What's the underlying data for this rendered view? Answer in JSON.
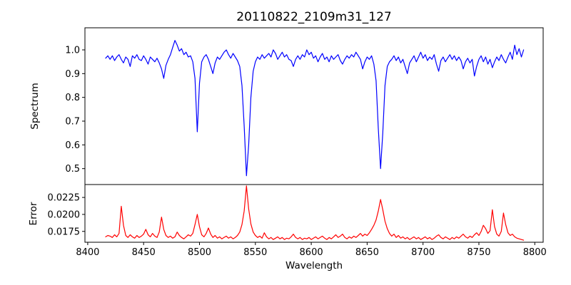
{
  "figure": {
    "title": "20110822_2109m31_127",
    "background_color": "#ffffff",
    "frame_color": "#000000"
  },
  "chart_data": [
    {
      "type": "line",
      "panel": "spectrum",
      "title": "20110822_2109m31_127",
      "xlabel": "",
      "ylabel": "Spectrum",
      "xlim": [
        8397.5,
        8807.5
      ],
      "ylim": [
        0.433,
        1.093
      ],
      "yticks": [
        1.0,
        0.9,
        0.8,
        0.7,
        0.6,
        0.5
      ],
      "ytick_labels": [
        "1.0",
        "0.9",
        "0.8",
        "0.7",
        "0.6",
        "0.5"
      ],
      "grid": false,
      "legend": "none",
      "annotations": "absorption lines (Ca II triplet) near 8498, 8542, 8662; deepest minima ~0.65, ~0.47, ~0.50",
      "series": [
        {
          "name": "spectrum",
          "color": "#0000ff",
          "x_start": 8416,
          "x_step": 2,
          "y": [
            0.965,
            0.975,
            0.96,
            0.975,
            0.955,
            0.97,
            0.98,
            0.96,
            0.945,
            0.97,
            0.96,
            0.93,
            0.975,
            0.965,
            0.98,
            0.96,
            0.955,
            0.975,
            0.96,
            0.94,
            0.97,
            0.96,
            0.95,
            0.965,
            0.945,
            0.92,
            0.88,
            0.935,
            0.96,
            0.98,
            1.01,
            1.04,
            1.02,
            0.995,
            1.005,
            0.98,
            0.99,
            0.97,
            0.975,
            0.95,
            0.88,
            0.655,
            0.86,
            0.95,
            0.97,
            0.98,
            0.96,
            0.93,
            0.9,
            0.945,
            0.97,
            0.96,
            0.975,
            0.99,
            1.0,
            0.98,
            0.965,
            0.985,
            0.97,
            0.955,
            0.93,
            0.85,
            0.68,
            0.47,
            0.6,
            0.8,
            0.91,
            0.95,
            0.97,
            0.96,
            0.98,
            0.965,
            0.975,
            0.985,
            0.97,
            1.0,
            0.985,
            0.96,
            0.975,
            0.99,
            0.97,
            0.98,
            0.96,
            0.955,
            0.93,
            0.96,
            0.975,
            0.96,
            0.98,
            0.97,
            1.0,
            0.98,
            0.99,
            0.965,
            0.975,
            0.95,
            0.97,
            0.985,
            0.96,
            0.97,
            0.95,
            0.975,
            0.96,
            0.97,
            0.98,
            0.955,
            0.94,
            0.96,
            0.975,
            0.965,
            0.98,
            0.97,
            0.99,
            0.975,
            0.96,
            0.92,
            0.95,
            0.97,
            0.96,
            0.975,
            0.94,
            0.87,
            0.67,
            0.5,
            0.65,
            0.85,
            0.93,
            0.95,
            0.96,
            0.975,
            0.955,
            0.97,
            0.945,
            0.96,
            0.93,
            0.9,
            0.945,
            0.96,
            0.975,
            0.95,
            0.97,
            0.99,
            0.965,
            0.98,
            0.955,
            0.97,
            0.96,
            0.98,
            0.94,
            0.91,
            0.955,
            0.97,
            0.95,
            0.965,
            0.98,
            0.96,
            0.975,
            0.955,
            0.97,
            0.955,
            0.92,
            0.95,
            0.965,
            0.945,
            0.96,
            0.89,
            0.93,
            0.96,
            0.975,
            0.95,
            0.97,
            0.94,
            0.96,
            0.925,
            0.95,
            0.97,
            0.955,
            0.98,
            0.96,
            0.945,
            0.97,
            0.99,
            0.96,
            1.02,
            0.98,
            1.005,
            0.97,
            1.0
          ]
        }
      ]
    },
    {
      "type": "line",
      "panel": "error",
      "title": "",
      "xlabel": "Wavelength",
      "ylabel": "Error",
      "xlim": [
        8397.5,
        8807.5
      ],
      "ylim": [
        0.0159,
        0.0244
      ],
      "xticks": [
        8400,
        8450,
        8500,
        8550,
        8600,
        8650,
        8700,
        8750,
        8800
      ],
      "xtick_labels": [
        "8400",
        "8450",
        "8500",
        "8550",
        "8600",
        "8650",
        "8700",
        "8750",
        "8800"
      ],
      "yticks": [
        0.0225,
        0.02,
        0.0175
      ],
      "ytick_labels": [
        "0.0225",
        "0.0200",
        "0.0175"
      ],
      "grid": false,
      "legend": "none",
      "annotations": "error spikes at ~8430, ~8466, ~8498, ~8542 (max ~0.0242), ~8662 (~0.0222), ~8754-8780; baseline ~0.0165-0.0170",
      "series": [
        {
          "name": "error",
          "color": "#ff0000",
          "x_start": 8416,
          "x_step": 2,
          "y": [
            0.0167,
            0.0169,
            0.0168,
            0.0166,
            0.017,
            0.0167,
            0.0172,
            0.0212,
            0.0184,
            0.0169,
            0.0166,
            0.017,
            0.0167,
            0.0165,
            0.0169,
            0.0166,
            0.0168,
            0.0171,
            0.0178,
            0.017,
            0.0167,
            0.0172,
            0.0168,
            0.0166,
            0.0174,
            0.0196,
            0.0178,
            0.0169,
            0.0166,
            0.0168,
            0.0165,
            0.0167,
            0.0174,
            0.0169,
            0.0166,
            0.0164,
            0.0167,
            0.017,
            0.0168,
            0.0172,
            0.0185,
            0.02,
            0.0182,
            0.017,
            0.0167,
            0.0172,
            0.018,
            0.0171,
            0.0166,
            0.0169,
            0.0165,
            0.0167,
            0.0164,
            0.0166,
            0.0168,
            0.0165,
            0.0167,
            0.0164,
            0.0166,
            0.0169,
            0.0174,
            0.0185,
            0.0205,
            0.0242,
            0.0208,
            0.0186,
            0.0174,
            0.0169,
            0.0166,
            0.0168,
            0.0165,
            0.0173,
            0.0167,
            0.0164,
            0.0166,
            0.0163,
            0.0165,
            0.0167,
            0.0164,
            0.0166,
            0.0163,
            0.0165,
            0.0164,
            0.0167,
            0.0171,
            0.0166,
            0.0164,
            0.0166,
            0.0163,
            0.0165,
            0.0164,
            0.0166,
            0.0163,
            0.0165,
            0.0167,
            0.0164,
            0.0166,
            0.0168,
            0.0165,
            0.0163,
            0.0166,
            0.0164,
            0.0167,
            0.017,
            0.0166,
            0.0168,
            0.0171,
            0.0166,
            0.0164,
            0.0167,
            0.0165,
            0.0168,
            0.0166,
            0.0169,
            0.0172,
            0.0168,
            0.0171,
            0.0169,
            0.0173,
            0.0178,
            0.0184,
            0.0192,
            0.0205,
            0.0222,
            0.0207,
            0.019,
            0.0179,
            0.0172,
            0.0168,
            0.0171,
            0.0166,
            0.0169,
            0.0165,
            0.0167,
            0.0164,
            0.0166,
            0.0163,
            0.0165,
            0.0167,
            0.0164,
            0.0166,
            0.0163,
            0.0165,
            0.0167,
            0.0164,
            0.0166,
            0.0163,
            0.0165,
            0.0168,
            0.017,
            0.0166,
            0.0164,
            0.0167,
            0.0165,
            0.0163,
            0.0166,
            0.0164,
            0.0167,
            0.0165,
            0.0168,
            0.0171,
            0.0167,
            0.0165,
            0.0168,
            0.0166,
            0.017,
            0.0173,
            0.0169,
            0.0175,
            0.0184,
            0.0179,
            0.0172,
            0.0176,
            0.0207,
            0.0182,
            0.0171,
            0.0168,
            0.0175,
            0.0202,
            0.0185,
            0.0173,
            0.0169,
            0.0171,
            0.0167,
            0.0165,
            0.0164,
            0.0163,
            0.0162
          ]
        }
      ]
    }
  ]
}
